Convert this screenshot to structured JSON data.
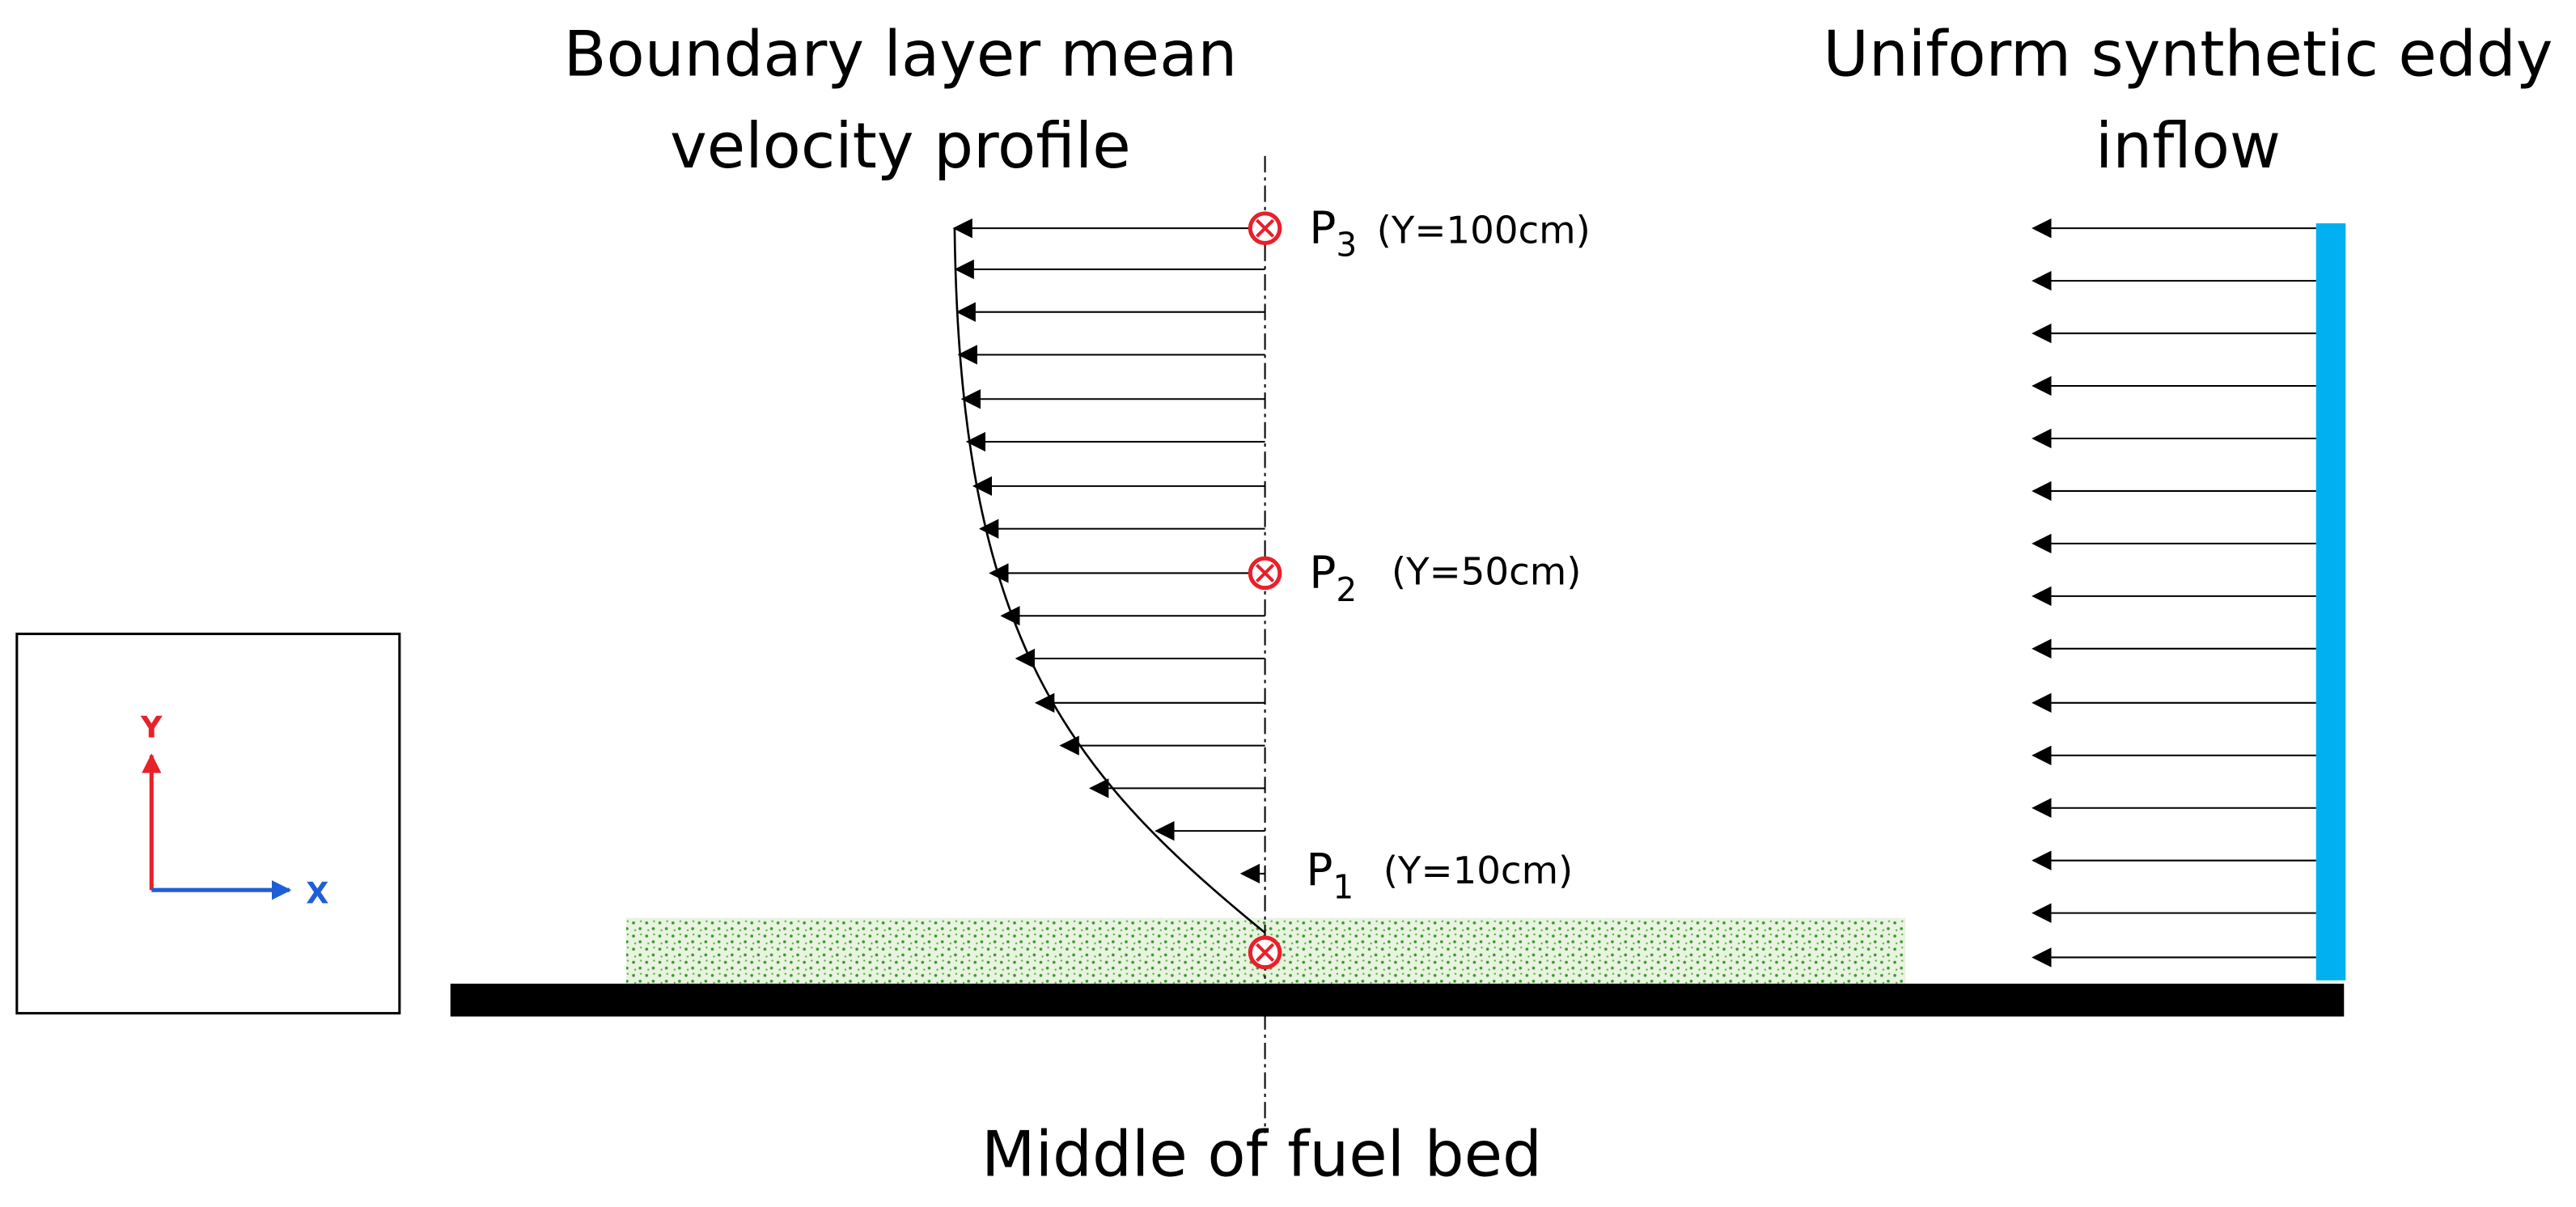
{
  "titles": {
    "profile": [
      "Boundary layer mean",
      "velocity profile"
    ],
    "inflow": [
      "Uniform synthetic eddy",
      "inflow"
    ]
  },
  "probes": [
    {
      "name": "P",
      "index": "1",
      "height": "(Y=10cm)"
    },
    {
      "name": "P",
      "index": "2",
      "height": "(Y=50cm)"
    },
    {
      "name": "P",
      "index": "3",
      "height": "(Y=100cm)"
    }
  ],
  "axes": {
    "x": "X",
    "y": "Y"
  },
  "caption": "Middle of fuel bed"
}
